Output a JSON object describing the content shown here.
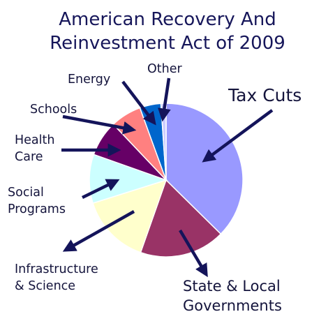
{
  "chart_data": {
    "type": "pie",
    "title_lines": [
      "American Recovery And",
      "Reinvestment Act of 2009"
    ],
    "slices": [
      {
        "label": "Tax Cuts",
        "value": 37.8,
        "color": "#9999ff"
      },
      {
        "label": "State & Local Governments",
        "value": 18.2,
        "color": "#993366"
      },
      {
        "label": "Infrastructure & Science",
        "value": 14.9,
        "color": "#ffffcc"
      },
      {
        "label": "Social Programs",
        "value": 10.4,
        "color": "#ccffff"
      },
      {
        "label": "Health Care",
        "value": 7.6,
        "color": "#660066"
      },
      {
        "label": "Schools",
        "value": 6.6,
        "color": "#ff8080"
      },
      {
        "label": "Energy",
        "value": 4.5,
        "color": "#0066cc"
      },
      {
        "label": "Other",
        "value": 1.1,
        "color": "#ccccff"
      }
    ],
    "labels": [
      {
        "lines": [
          "Tax Cuts"
        ]
      },
      {
        "lines": [
          "State & Local",
          "Governments"
        ]
      },
      {
        "lines": [
          "Infrastructure",
          "& Science"
        ]
      },
      {
        "lines": [
          "Social",
          "Programs"
        ]
      },
      {
        "lines": [
          "Health",
          "Care"
        ]
      },
      {
        "lines": [
          "Schools"
        ]
      },
      {
        "lines": [
          "Energy"
        ]
      },
      {
        "lines": [
          "Other"
        ]
      }
    ],
    "arrow_color": "#14145a",
    "legend": "none"
  }
}
